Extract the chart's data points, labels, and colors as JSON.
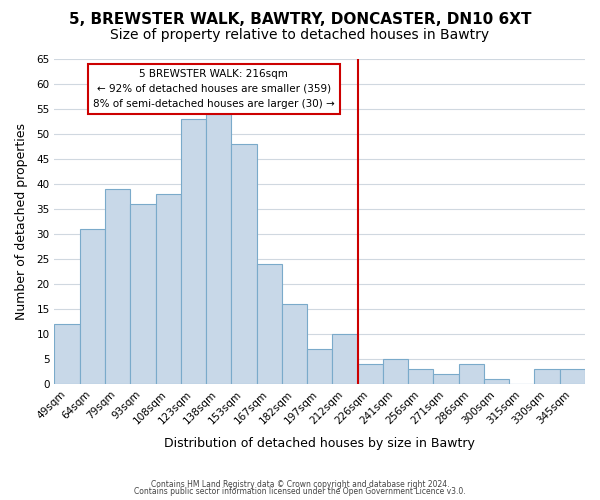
{
  "title": "5, BREWSTER WALK, BAWTRY, DONCASTER, DN10 6XT",
  "subtitle": "Size of property relative to detached houses in Bawtry",
  "xlabel": "Distribution of detached houses by size in Bawtry",
  "ylabel": "Number of detached properties",
  "bar_labels": [
    "49sqm",
    "64sqm",
    "79sqm",
    "93sqm",
    "108sqm",
    "123sqm",
    "138sqm",
    "153sqm",
    "167sqm",
    "182sqm",
    "197sqm",
    "212sqm",
    "226sqm",
    "241sqm",
    "256sqm",
    "271sqm",
    "286sqm",
    "300sqm",
    "315sqm",
    "330sqm",
    "345sqm"
  ],
  "bar_values": [
    12,
    31,
    39,
    36,
    38,
    53,
    54,
    48,
    24,
    16,
    7,
    10,
    4,
    5,
    3,
    2,
    4,
    1,
    0,
    3,
    3
  ],
  "bar_color": "#c8d8e8",
  "bar_edge_color": "#7aaaca",
  "vline_x": 11.5,
  "vline_color": "#cc0000",
  "annotation_title": "5 BREWSTER WALK: 216sqm",
  "annotation_line1": "← 92% of detached houses are smaller (359)",
  "annotation_line2": "8% of semi-detached houses are larger (30) →",
  "annotation_box_color": "#ffffff",
  "annotation_box_edge": "#cc0000",
  "ylim": [
    0,
    65
  ],
  "yticks": [
    0,
    5,
    10,
    15,
    20,
    25,
    30,
    35,
    40,
    45,
    50,
    55,
    60,
    65
  ],
  "footer1": "Contains HM Land Registry data © Crown copyright and database right 2024.",
  "footer2": "Contains public sector information licensed under the Open Government Licence v3.0.",
  "bg_color": "#ffffff",
  "grid_color": "#d0d8e0",
  "title_fontsize": 11,
  "subtitle_fontsize": 10,
  "tick_fontsize": 7.5,
  "ylabel_fontsize": 9,
  "xlabel_fontsize": 9
}
